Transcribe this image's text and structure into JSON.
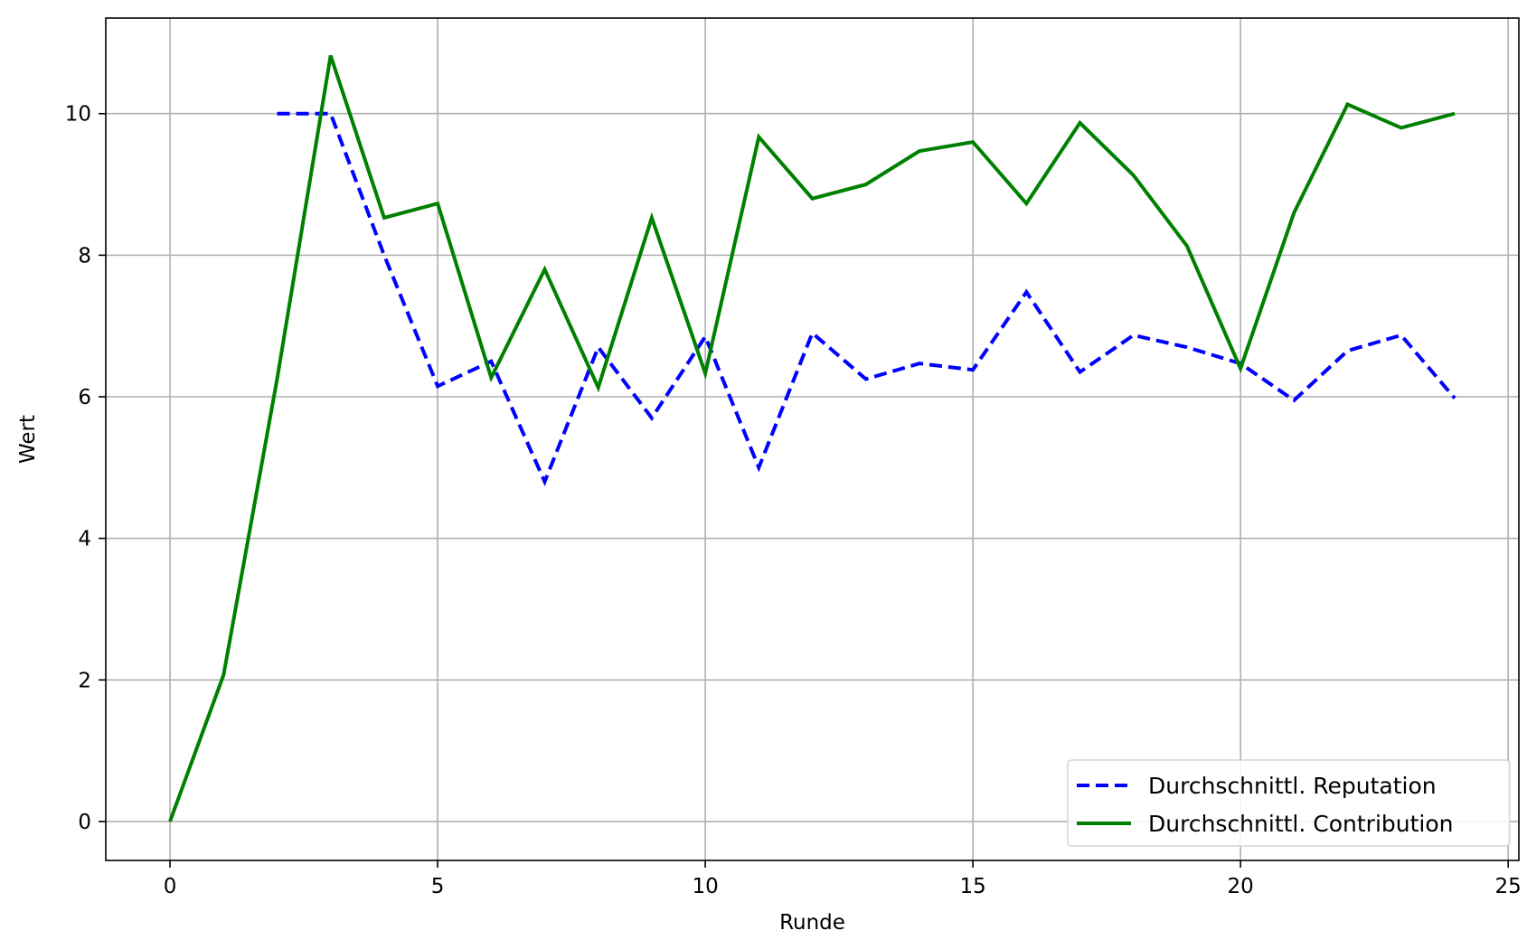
{
  "chart_data": {
    "type": "line",
    "title": "",
    "xlabel": "Runde",
    "ylabel": "Wert",
    "xlim": [
      -1.2,
      25.2
    ],
    "ylim": [
      -0.55,
      11.35
    ],
    "xticks": [
      0,
      5,
      10,
      15,
      20,
      25
    ],
    "yticks": [
      0,
      2,
      4,
      6,
      8,
      10
    ],
    "grid": true,
    "legend_position": "lower-right",
    "series": [
      {
        "name": "Durchschnittl. Reputation",
        "color": "#0000ff",
        "style": "dashed",
        "x": [
          2,
          3,
          4,
          5,
          6,
          7,
          8,
          9,
          10,
          11,
          12,
          13,
          14,
          15,
          16,
          17,
          18,
          19,
          20,
          21,
          22,
          23,
          24
        ],
        "y": [
          10.0,
          10.0,
          8.0,
          6.15,
          6.5,
          4.8,
          6.7,
          5.7,
          6.85,
          5.0,
          6.9,
          6.25,
          6.47,
          6.38,
          7.48,
          6.35,
          6.87,
          6.7,
          6.47,
          5.95,
          6.65,
          6.87,
          5.98
        ]
      },
      {
        "name": "Durchschnittl. Contribution",
        "color": "#008000",
        "style": "solid",
        "x": [
          0,
          1,
          2,
          3,
          4,
          5,
          6,
          7,
          8,
          9,
          10,
          11,
          12,
          13,
          14,
          15,
          16,
          17,
          18,
          19,
          20,
          21,
          22,
          23,
          24
        ],
        "y": [
          0.0,
          2.07,
          6.25,
          10.82,
          8.53,
          8.73,
          6.27,
          7.8,
          6.13,
          8.53,
          6.33,
          9.67,
          8.8,
          9.0,
          9.47,
          9.6,
          8.73,
          9.87,
          9.13,
          8.13,
          6.4,
          8.6,
          10.13,
          9.8,
          10.0
        ]
      }
    ]
  }
}
